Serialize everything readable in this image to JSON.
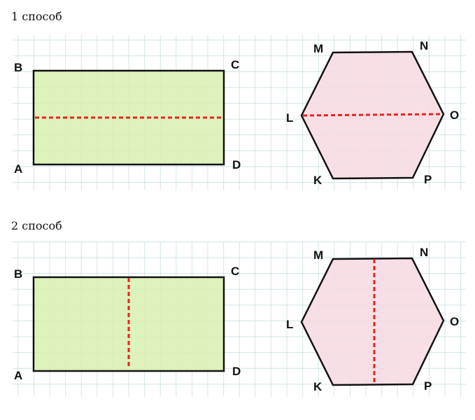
{
  "sections": [
    {
      "title": "1 способ",
      "cut": "horizontal",
      "rect_labels": {
        "A": "A",
        "B": "B",
        "C": "C",
        "D": "D"
      },
      "hex_labels": {
        "M": "M",
        "N": "N",
        "O": "O",
        "P": "P",
        "K": "K",
        "L": "L"
      }
    },
    {
      "title": "2 способ",
      "cut": "vertical",
      "rect_labels": {
        "A": "A",
        "B": "B",
        "C": "C",
        "D": "D"
      },
      "hex_labels": {
        "M": "M",
        "N": "N",
        "O": "O",
        "P": "P",
        "K": "K",
        "L": "L"
      }
    }
  ],
  "colors": {
    "grid": "#c9dfe2",
    "rect_fill": "#d8f0b0",
    "hex_fill": "#f7d9e2",
    "cut_line": "#e8231e",
    "outline": "#111111"
  }
}
